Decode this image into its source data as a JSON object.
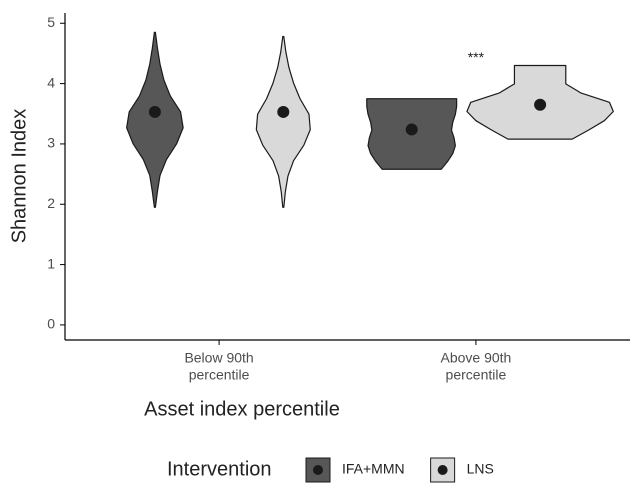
{
  "chart_data": {
    "type": "violin",
    "x_label": "Asset index percentile",
    "y_label": "Shannon Index",
    "categories": [
      [
        "Below 90th",
        "percentile"
      ],
      [
        "Above 90th",
        "percentile"
      ]
    ],
    "ylim": [
      -0.25,
      5.17
    ],
    "yticks": [
      0,
      1,
      2,
      3,
      4,
      5
    ],
    "legend_title": "Intervention",
    "legend_position": "bottom",
    "series": [
      {
        "name": "IFA+MMN",
        "color": "#575757",
        "values": [
          3.53,
          3.24
        ],
        "min": [
          1.95,
          2.58
        ],
        "max": [
          4.85,
          3.75
        ],
        "density": [
          [
            0.002,
            0.01,
            0.02,
            0.045,
            0.085,
            0.11,
            0.1,
            0.06,
            0.035,
            0.02,
            0.01,
            0.002
          ],
          [
            0.115,
            0.14,
            0.16,
            0.17,
            0.165,
            0.155,
            0.16,
            0.17,
            0.175,
            0.175
          ]
        ]
      },
      {
        "name": "LNS",
        "color": "#d9d9d9",
        "values": [
          3.53,
          3.65
        ],
        "min": [
          1.95,
          3.08
        ],
        "max": [
          4.78,
          4.3
        ],
        "density": [
          [
            0.002,
            0.008,
            0.018,
            0.04,
            0.08,
            0.105,
            0.1,
            0.065,
            0.04,
            0.022,
            0.01,
            0.002
          ],
          [
            0.125,
            0.19,
            0.25,
            0.285,
            0.27,
            0.16,
            0.1,
            0.1,
            0.1
          ]
        ]
      }
    ],
    "annotations": [
      {
        "text": "***",
        "category": 1,
        "y": 4.42
      }
    ]
  }
}
